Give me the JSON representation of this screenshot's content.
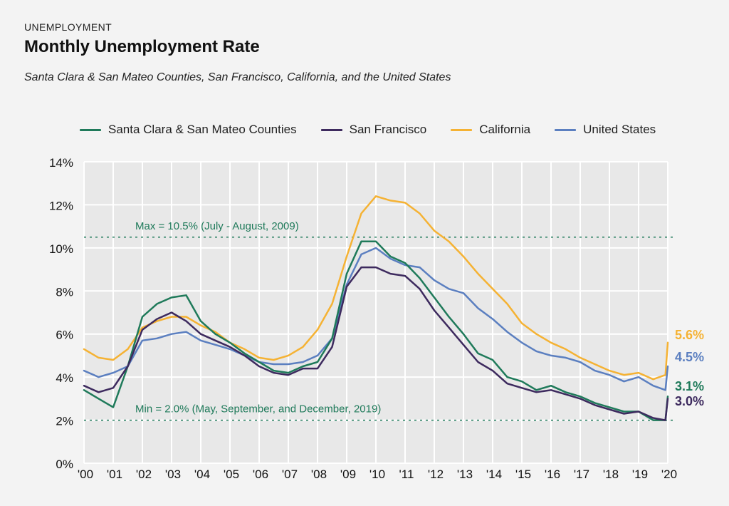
{
  "header": {
    "eyebrow": "UNEMPLOYMENT",
    "title": "Monthly Unemployment Rate",
    "subtitle": "Santa Clara & San Mateo Counties, San Francisco, California, and the United States"
  },
  "legend": [
    {
      "label": "Santa Clara & San Mateo Counties",
      "color": "#1f7a5a"
    },
    {
      "label": "San Francisco",
      "color": "#3d2a5e"
    },
    {
      "label": "California",
      "color": "#f5b233"
    },
    {
      "label": "United States",
      "color": "#5b7fc0"
    }
  ],
  "chart_data": {
    "type": "line",
    "x_tick_labels": [
      "'00",
      "'01",
      "'02",
      "'03",
      "'04",
      "'05",
      "'06",
      "'07",
      "'08",
      "'09",
      "'10",
      "'11",
      "'12",
      "'13",
      "'14",
      "'15",
      "'16",
      "'17",
      "'18",
      "'19",
      "'20"
    ],
    "y_tick_labels": [
      "0%",
      "2%",
      "4%",
      "6%",
      "8%",
      "10%",
      "12%",
      "14%"
    ],
    "ylim": [
      0,
      14
    ],
    "xlim": [
      2000,
      2020
    ],
    "reference_lines": [
      {
        "value": 10.5,
        "label": "Max = 10.5% (July - August, 2009)"
      },
      {
        "value": 2.0,
        "label": "Min = 2.0% (May, September, and December, 2019)"
      }
    ],
    "series": [
      {
        "name": "California",
        "color": "#f5b233",
        "end_label": "5.6%",
        "points": [
          [
            2000,
            5.3
          ],
          [
            2000.5,
            4.9
          ],
          [
            2001,
            4.8
          ],
          [
            2001.5,
            5.3
          ],
          [
            2002,
            6.3
          ],
          [
            2002.5,
            6.6
          ],
          [
            2003,
            6.8
          ],
          [
            2003.5,
            6.8
          ],
          [
            2004,
            6.4
          ],
          [
            2004.5,
            6.1
          ],
          [
            2005,
            5.6
          ],
          [
            2005.5,
            5.3
          ],
          [
            2006,
            4.9
          ],
          [
            2006.5,
            4.8
          ],
          [
            2007,
            5.0
          ],
          [
            2007.5,
            5.4
          ],
          [
            2008,
            6.2
          ],
          [
            2008.5,
            7.4
          ],
          [
            2009,
            9.6
          ],
          [
            2009.5,
            11.6
          ],
          [
            2010,
            12.4
          ],
          [
            2010.5,
            12.2
          ],
          [
            2011,
            12.1
          ],
          [
            2011.5,
            11.6
          ],
          [
            2012,
            10.8
          ],
          [
            2012.5,
            10.3
          ],
          [
            2013,
            9.6
          ],
          [
            2013.5,
            8.8
          ],
          [
            2014,
            8.1
          ],
          [
            2014.5,
            7.4
          ],
          [
            2015,
            6.5
          ],
          [
            2015.5,
            6.0
          ],
          [
            2016,
            5.6
          ],
          [
            2016.5,
            5.3
          ],
          [
            2017,
            4.9
          ],
          [
            2017.5,
            4.6
          ],
          [
            2018,
            4.3
          ],
          [
            2018.5,
            4.1
          ],
          [
            2019,
            4.2
          ],
          [
            2019.5,
            3.9
          ],
          [
            2019.92,
            4.1
          ],
          [
            2020,
            5.6
          ]
        ]
      },
      {
        "name": "United States",
        "color": "#5b7fc0",
        "end_label": "4.5%",
        "points": [
          [
            2000,
            4.3
          ],
          [
            2000.5,
            4.0
          ],
          [
            2001,
            4.2
          ],
          [
            2001.5,
            4.5
          ],
          [
            2002,
            5.7
          ],
          [
            2002.5,
            5.8
          ],
          [
            2003,
            6.0
          ],
          [
            2003.5,
            6.1
          ],
          [
            2004,
            5.7
          ],
          [
            2004.5,
            5.5
          ],
          [
            2005,
            5.3
          ],
          [
            2005.5,
            5.0
          ],
          [
            2006,
            4.7
          ],
          [
            2006.5,
            4.6
          ],
          [
            2007,
            4.6
          ],
          [
            2007.5,
            4.7
          ],
          [
            2008,
            5.0
          ],
          [
            2008.5,
            5.8
          ],
          [
            2009,
            8.3
          ],
          [
            2009.5,
            9.7
          ],
          [
            2010,
            10.0
          ],
          [
            2010.5,
            9.5
          ],
          [
            2011,
            9.2
          ],
          [
            2011.5,
            9.1
          ],
          [
            2012,
            8.5
          ],
          [
            2012.5,
            8.1
          ],
          [
            2013,
            7.9
          ],
          [
            2013.5,
            7.2
          ],
          [
            2014,
            6.7
          ],
          [
            2014.5,
            6.1
          ],
          [
            2015,
            5.6
          ],
          [
            2015.5,
            5.2
          ],
          [
            2016,
            5.0
          ],
          [
            2016.5,
            4.9
          ],
          [
            2017,
            4.7
          ],
          [
            2017.5,
            4.3
          ],
          [
            2018,
            4.1
          ],
          [
            2018.5,
            3.8
          ],
          [
            2019,
            4.0
          ],
          [
            2019.5,
            3.6
          ],
          [
            2019.92,
            3.4
          ],
          [
            2020,
            4.5
          ]
        ]
      },
      {
        "name": "Santa Clara & San Mateo Counties",
        "color": "#1f7a5a",
        "end_label": "3.1%",
        "points": [
          [
            2000,
            3.4
          ],
          [
            2000.5,
            3.0
          ],
          [
            2001,
            2.6
          ],
          [
            2001.5,
            4.5
          ],
          [
            2002,
            6.8
          ],
          [
            2002.5,
            7.4
          ],
          [
            2003,
            7.7
          ],
          [
            2003.5,
            7.8
          ],
          [
            2004,
            6.6
          ],
          [
            2004.5,
            6.0
          ],
          [
            2005,
            5.6
          ],
          [
            2005.5,
            5.1
          ],
          [
            2006,
            4.7
          ],
          [
            2006.5,
            4.3
          ],
          [
            2007,
            4.2
          ],
          [
            2007.5,
            4.5
          ],
          [
            2008,
            4.7
          ],
          [
            2008.5,
            5.8
          ],
          [
            2009,
            8.8
          ],
          [
            2009.5,
            10.3
          ],
          [
            2010,
            10.3
          ],
          [
            2010.5,
            9.6
          ],
          [
            2011,
            9.3
          ],
          [
            2011.5,
            8.6
          ],
          [
            2012,
            7.7
          ],
          [
            2012.5,
            6.8
          ],
          [
            2013,
            6.0
          ],
          [
            2013.5,
            5.1
          ],
          [
            2014,
            4.8
          ],
          [
            2014.5,
            4.0
          ],
          [
            2015,
            3.8
          ],
          [
            2015.5,
            3.4
          ],
          [
            2016,
            3.6
          ],
          [
            2016.5,
            3.3
          ],
          [
            2017,
            3.1
          ],
          [
            2017.5,
            2.8
          ],
          [
            2018,
            2.6
          ],
          [
            2018.5,
            2.4
          ],
          [
            2019,
            2.4
          ],
          [
            2019.5,
            2.0
          ],
          [
            2019.92,
            2.0
          ],
          [
            2020,
            3.1
          ]
        ]
      },
      {
        "name": "San Francisco",
        "color": "#3d2a5e",
        "end_label": "3.0%",
        "points": [
          [
            2000,
            3.6
          ],
          [
            2000.5,
            3.3
          ],
          [
            2001,
            3.5
          ],
          [
            2001.5,
            4.5
          ],
          [
            2002,
            6.2
          ],
          [
            2002.5,
            6.7
          ],
          [
            2003,
            7.0
          ],
          [
            2003.5,
            6.6
          ],
          [
            2004,
            6.0
          ],
          [
            2004.5,
            5.7
          ],
          [
            2005,
            5.4
          ],
          [
            2005.5,
            5.0
          ],
          [
            2006,
            4.5
          ],
          [
            2006.5,
            4.2
          ],
          [
            2007,
            4.1
          ],
          [
            2007.5,
            4.4
          ],
          [
            2008,
            4.4
          ],
          [
            2008.5,
            5.4
          ],
          [
            2009,
            8.2
          ],
          [
            2009.5,
            9.1
          ],
          [
            2010,
            9.1
          ],
          [
            2010.5,
            8.8
          ],
          [
            2011,
            8.7
          ],
          [
            2011.5,
            8.1
          ],
          [
            2012,
            7.1
          ],
          [
            2012.5,
            6.3
          ],
          [
            2013,
            5.5
          ],
          [
            2013.5,
            4.7
          ],
          [
            2014,
            4.3
          ],
          [
            2014.5,
            3.7
          ],
          [
            2015,
            3.5
          ],
          [
            2015.5,
            3.3
          ],
          [
            2016,
            3.4
          ],
          [
            2016.5,
            3.2
          ],
          [
            2017,
            3.0
          ],
          [
            2017.5,
            2.7
          ],
          [
            2018,
            2.5
          ],
          [
            2018.5,
            2.3
          ],
          [
            2019,
            2.4
          ],
          [
            2019.5,
            2.1
          ],
          [
            2019.92,
            2.0
          ],
          [
            2020,
            3.0
          ]
        ]
      }
    ]
  }
}
